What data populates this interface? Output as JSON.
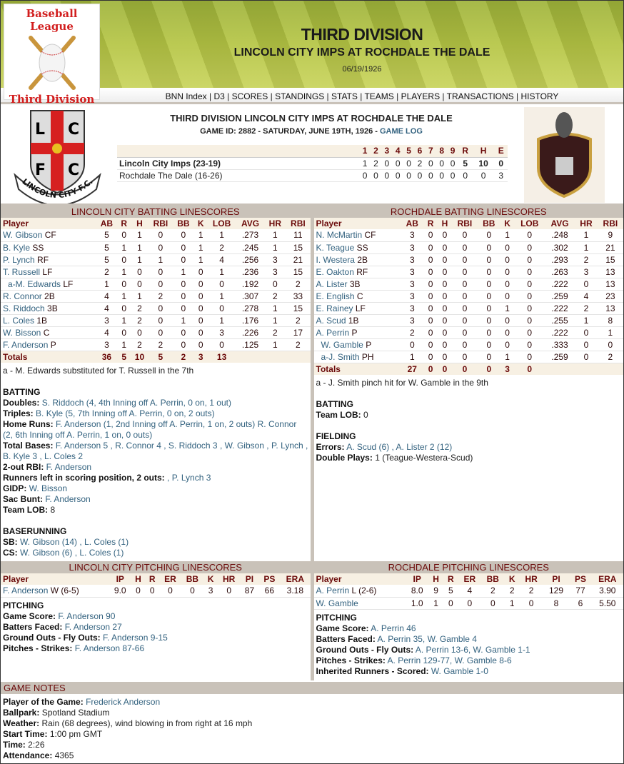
{
  "header": {
    "logo_top": "Baseball League",
    "logo_bottom": "Third Division",
    "title": "THIRD DIVISION",
    "subtitle": "LINCOLN CITY IMPS AT ROCHDALE THE DALE",
    "date": "06/19/1926"
  },
  "nav": [
    "BNN Index",
    "D3",
    "SCORES",
    "STANDINGS",
    "STATS",
    "TEAMS",
    "PLAYERS",
    "TRANSACTIONS",
    "HISTORY"
  ],
  "box": {
    "title": "THIRD DIVISION LINCOLN CITY IMPS AT ROCHDALE THE DALE",
    "game_id": "GAME ID: 2882 - SATURDAY, JUNE 19TH, 1926 - ",
    "game_log": "GAME LOG",
    "headers": [
      "",
      "1",
      "2",
      "3",
      "4",
      "5",
      "6",
      "7",
      "8",
      "9",
      "R",
      "H",
      "E"
    ],
    "rows": [
      [
        "Lincoln City Imps (23-19)",
        "1",
        "2",
        "0",
        "0",
        "0",
        "2",
        "0",
        "0",
        "0",
        "5",
        "10",
        "0"
      ],
      [
        "Rochdale The Dale (16-26)",
        "0",
        "0",
        "0",
        "0",
        "0",
        "0",
        "0",
        "0",
        "0",
        "0",
        "0",
        "3"
      ]
    ],
    "home_logo_text": "LINCOLN CITY F.C."
  },
  "bat_headers": [
    "Player",
    "AB",
    "R",
    "H",
    "RBI",
    "BB",
    "K",
    "LOB",
    "AVG",
    "HR",
    "RBI"
  ],
  "away_bat": {
    "title": "LINCOLN CITY BATTING LINESCORES",
    "rows": [
      [
        "W. Gibson",
        "CF",
        "5",
        "0",
        "1",
        "0",
        "0",
        "1",
        "1",
        ".273",
        "1",
        "11"
      ],
      [
        "B. Kyle",
        "SS",
        "5",
        "1",
        "1",
        "0",
        "0",
        "1",
        "2",
        ".245",
        "1",
        "15"
      ],
      [
        "P. Lynch",
        "RF",
        "5",
        "0",
        "1",
        "1",
        "0",
        "1",
        "4",
        ".256",
        "3",
        "21"
      ],
      [
        "T. Russell",
        "LF",
        "2",
        "1",
        "0",
        "0",
        "1",
        "0",
        "1",
        ".236",
        "3",
        "15"
      ],
      [
        "a-M. Edwards",
        "LF",
        "1",
        "0",
        "0",
        "0",
        "0",
        "0",
        "0",
        ".192",
        "0",
        "2"
      ],
      [
        "R. Connor",
        "2B",
        "4",
        "1",
        "1",
        "2",
        "0",
        "0",
        "1",
        ".307",
        "2",
        "33"
      ],
      [
        "S. Riddoch",
        "3B",
        "4",
        "0",
        "2",
        "0",
        "0",
        "0",
        "0",
        ".278",
        "1",
        "15"
      ],
      [
        "L. Coles",
        "1B",
        "3",
        "1",
        "2",
        "0",
        "1",
        "0",
        "1",
        ".176",
        "1",
        "2"
      ],
      [
        "W. Bisson",
        "C",
        "4",
        "0",
        "0",
        "0",
        "0",
        "0",
        "3",
        ".226",
        "2",
        "17"
      ],
      [
        "F. Anderson",
        "P",
        "3",
        "1",
        "2",
        "2",
        "0",
        "0",
        "0",
        ".125",
        "1",
        "2"
      ]
    ],
    "totals": [
      "Totals",
      "36",
      "5",
      "10",
      "5",
      "2",
      "3",
      "13",
      "",
      "",
      ""
    ],
    "notes": [
      {
        "plain": "a - M. Edwards substituted for T. Russell in the 7th"
      },
      {
        "gap": true
      },
      {
        "head": "BATTING"
      },
      {
        "label": "Doubles:",
        "value": "S. Riddoch (4, 4th Inning off A. Perrin, 0 on, 1 out)"
      },
      {
        "label": "Triples:",
        "value": "B. Kyle (5, 7th Inning off A. Perrin, 0 on, 2 outs)"
      },
      {
        "label": "Home Runs:",
        "value": "F. Anderson (1, 2nd Inning off A. Perrin, 1 on, 2 outs) R. Connor (2, 6th Inning off A. Perrin, 1 on, 0 outs)"
      },
      {
        "label": "Total Bases:",
        "value": "F. Anderson 5 , R. Connor 4 , S. Riddoch 3 , W. Gibson , P. Lynch , B. Kyle 3 , L. Coles 2"
      },
      {
        "label": "2-out RBI:",
        "value": "F. Anderson"
      },
      {
        "label": "Runners left in scoring position, 2 outs:",
        "value": ", P. Lynch 3"
      },
      {
        "label": "GIDP:",
        "value": "W. Bisson"
      },
      {
        "label": "Sac Bunt:",
        "value": "F. Anderson"
      },
      {
        "label": "Team LOB:",
        "value": "8",
        "plain_value": true
      },
      {
        "gap": true
      },
      {
        "head": "BASERUNNING"
      },
      {
        "label": "SB:",
        "value": "W. Gibson (14) , L. Coles (1)"
      },
      {
        "label": "CS:",
        "value": "W. Gibson (6) , L. Coles (1)"
      }
    ]
  },
  "home_bat": {
    "title": "ROCHDALE BATTING LINESCORES",
    "rows": [
      [
        "N. McMartin",
        "CF",
        "3",
        "0",
        "0",
        "0",
        "0",
        "1",
        "0",
        ".248",
        "1",
        "9"
      ],
      [
        "K. Teague",
        "SS",
        "3",
        "0",
        "0",
        "0",
        "0",
        "0",
        "0",
        ".302",
        "1",
        "21"
      ],
      [
        "I. Westera",
        "2B",
        "3",
        "0",
        "0",
        "0",
        "0",
        "0",
        "0",
        ".293",
        "2",
        "15"
      ],
      [
        "E. Oakton",
        "RF",
        "3",
        "0",
        "0",
        "0",
        "0",
        "0",
        "0",
        ".263",
        "3",
        "13"
      ],
      [
        "A. Lister",
        "3B",
        "3",
        "0",
        "0",
        "0",
        "0",
        "0",
        "0",
        ".222",
        "0",
        "13"
      ],
      [
        "E. English",
        "C",
        "3",
        "0",
        "0",
        "0",
        "0",
        "0",
        "0",
        ".259",
        "4",
        "23"
      ],
      [
        "E. Rainey",
        "LF",
        "3",
        "0",
        "0",
        "0",
        "0",
        "1",
        "0",
        ".222",
        "2",
        "13"
      ],
      [
        "A. Scud",
        "1B",
        "3",
        "0",
        "0",
        "0",
        "0",
        "0",
        "0",
        ".255",
        "1",
        "8"
      ],
      [
        "A. Perrin",
        "P",
        "2",
        "0",
        "0",
        "0",
        "0",
        "0",
        "0",
        ".222",
        "0",
        "1"
      ],
      [
        "W. Gamble",
        "P",
        "0",
        "0",
        "0",
        "0",
        "0",
        "0",
        "0",
        ".333",
        "0",
        "0"
      ],
      [
        "a-J. Smith",
        "PH",
        "1",
        "0",
        "0",
        "0",
        "0",
        "1",
        "0",
        ".259",
        "0",
        "2"
      ]
    ],
    "totals": [
      "Totals",
      "27",
      "0",
      "0",
      "0",
      "0",
      "3",
      "0",
      "",
      "",
      ""
    ],
    "notes": [
      {
        "plain": "a - J. Smith pinch hit for W. Gamble in the 9th"
      },
      {
        "gap": true
      },
      {
        "head": "BATTING"
      },
      {
        "label": "Team LOB:",
        "value": "0",
        "plain_value": true
      },
      {
        "gap": true
      },
      {
        "head": "FIELDING"
      },
      {
        "label": "Errors:",
        "value": "A. Scud (6) , A. Lister 2 (12)"
      },
      {
        "label": "Double Plays:",
        "value": "1 (Teague-Westera-Scud)",
        "plain_value": true
      }
    ]
  },
  "pit_headers": [
    "Player",
    "IP",
    "H",
    "R",
    "ER",
    "BB",
    "K",
    "HR",
    "PI",
    "PS",
    "ERA"
  ],
  "away_pit": {
    "title": "LINCOLN CITY PITCHING LINESCORES",
    "rows": [
      [
        "F. Anderson",
        "W (6-5)",
        "9.0",
        "0",
        "0",
        "0",
        "0",
        "3",
        "0",
        "87",
        "66",
        "3.18"
      ]
    ],
    "notes": [
      {
        "head": "PITCHING"
      },
      {
        "label": "Game Score:",
        "value": "F. Anderson 90"
      },
      {
        "label": "Batters Faced:",
        "value": "F. Anderson 27"
      },
      {
        "label": "Ground Outs - Fly Outs:",
        "value": "F. Anderson 9-15"
      },
      {
        "label": "Pitches - Strikes:",
        "value": "F. Anderson 87-66"
      }
    ]
  },
  "home_pit": {
    "title": "ROCHDALE PITCHING LINESCORES",
    "rows": [
      [
        "A. Perrin",
        "L (2-6)",
        "8.0",
        "9",
        "5",
        "4",
        "2",
        "2",
        "2",
        "129",
        "77",
        "3.90"
      ],
      [
        "W. Gamble",
        "",
        "1.0",
        "1",
        "0",
        "0",
        "0",
        "1",
        "0",
        "8",
        "6",
        "5.50"
      ]
    ],
    "notes": [
      {
        "head": "PITCHING"
      },
      {
        "label": "Game Score:",
        "value": "A. Perrin 46"
      },
      {
        "label": "Batters Faced:",
        "value": "A. Perrin 35, W. Gamble 4"
      },
      {
        "label": "Ground Outs - Fly Outs:",
        "value": "A. Perrin 13-6, W. Gamble 1-1"
      },
      {
        "label": "Pitches - Strikes:",
        "value": "A. Perrin 129-77, W. Gamble 8-6"
      },
      {
        "label": "Inherited Runners - Scored:",
        "value": "W. Gamble 1-0"
      }
    ]
  },
  "game_notes": {
    "title": "GAME NOTES",
    "items": [
      {
        "label": "Player of the Game:",
        "value": "Frederick Anderson"
      },
      {
        "label": "Ballpark:",
        "value": "Spotland Stadium",
        "plain_value": true
      },
      {
        "label": "Weather:",
        "value": "Rain (68 degrees), wind blowing in from right at 16 mph",
        "plain_value": true
      },
      {
        "label": "Start Time:",
        "value": "1:00 pm GMT",
        "plain_value": true
      },
      {
        "label": "Time:",
        "value": "2:26",
        "plain_value": true
      },
      {
        "label": "Attendance:",
        "value": "4365",
        "plain_value": true
      }
    ]
  },
  "colors": {
    "accent": "#6b0a0a",
    "link": "#33627f",
    "section_bg": "#c9c2b9",
    "header_row_bg": "#f7f0e3"
  }
}
